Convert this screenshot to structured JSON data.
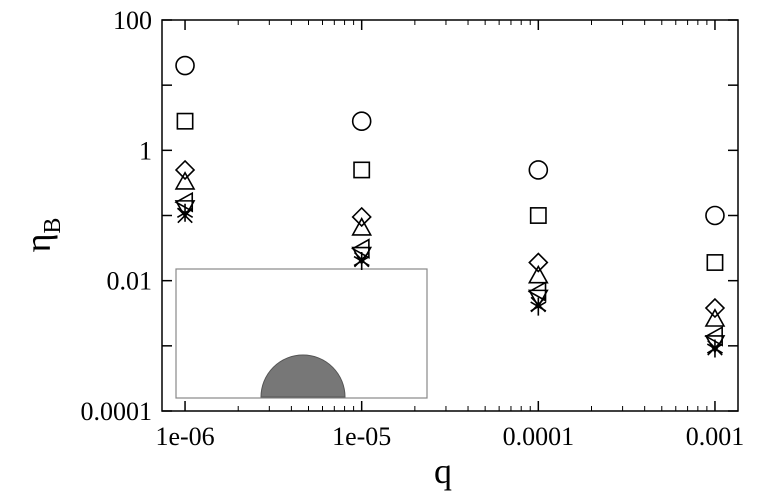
{
  "chart_data": {
    "type": "scatter",
    "xlabel": "q",
    "ylabel": "η",
    "ylabel_subscript": "B",
    "x_scale": "log",
    "y_scale": "log",
    "xlim": [
      1e-06,
      0.001
    ],
    "ylim": [
      0.0001,
      100
    ],
    "x_ticks": [
      1e-06,
      1e-05,
      0.0001,
      0.001
    ],
    "x_tick_labels": [
      "1e-06",
      "1e-05",
      "0.0001",
      "0.001"
    ],
    "y_ticks": [
      0.0001,
      0.01,
      1,
      100
    ],
    "y_tick_labels": [
      "0.0001",
      "0.01",
      "1",
      "100"
    ],
    "grid": false,
    "legend": "none",
    "x": [
      1e-06,
      1e-05,
      0.0001,
      0.001
    ],
    "series": [
      {
        "marker": "circle",
        "values": [
          20,
          2.8,
          0.5,
          0.1
        ]
      },
      {
        "marker": "square",
        "values": [
          2.8,
          0.5,
          0.1,
          0.019
        ]
      },
      {
        "marker": "diamond",
        "values": [
          0.5,
          0.095,
          0.019,
          0.0038
        ]
      },
      {
        "marker": "triangle-up",
        "values": [
          0.33,
          0.065,
          0.012,
          0.0026
        ]
      },
      {
        "marker": "triangle-left",
        "values": [
          0.16,
          0.031,
          0.0068,
          0.0014
        ]
      },
      {
        "marker": "triangle-down",
        "values": [
          0.13,
          0.025,
          0.0055,
          0.0011
        ]
      },
      {
        "marker": "x",
        "values": [
          0.1,
          0.021,
          0.0043,
          0.00093
        ]
      },
      {
        "marker": "asterisk",
        "values": [
          0.11,
          0.02,
          0.004,
          0.00091
        ]
      }
    ],
    "inset": {
      "depicts": "semicircular-bump",
      "fill_color": "#777777"
    }
  }
}
